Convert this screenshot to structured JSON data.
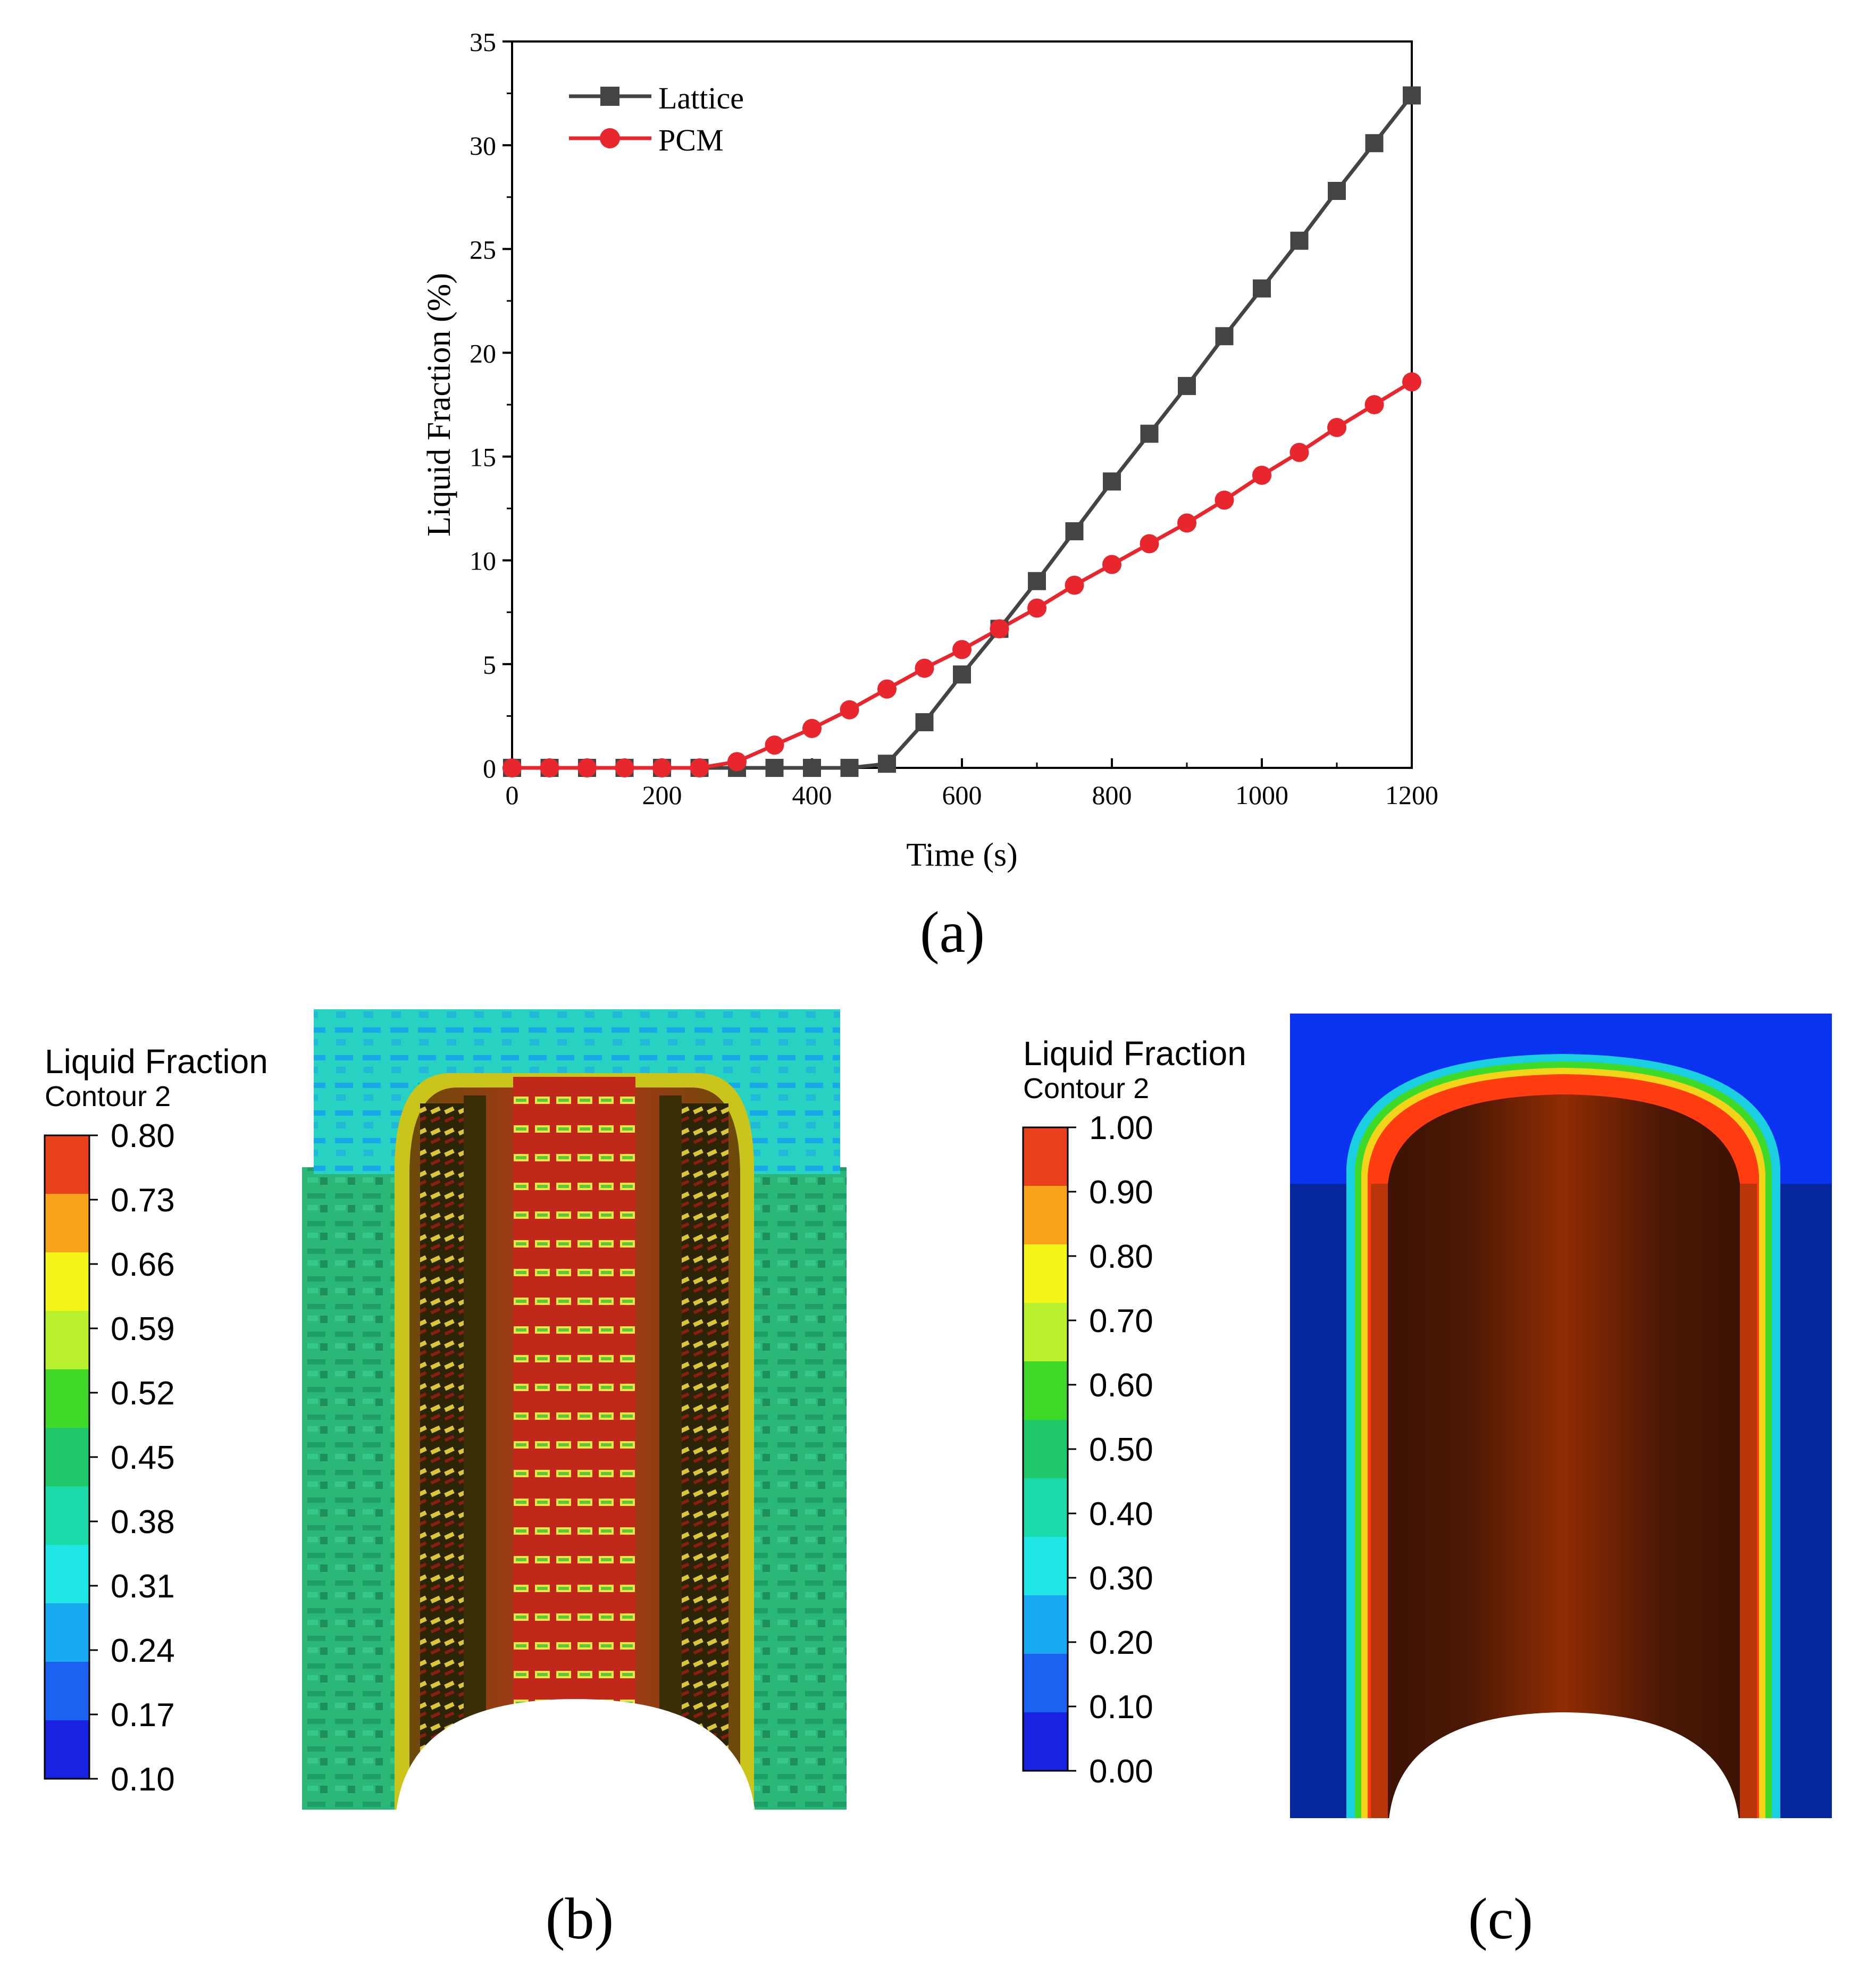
{
  "chart_data": [
    {
      "type": "line",
      "panel_label": "(a)",
      "title": "",
      "xlabel": "Time (s)",
      "ylabel": "Liquid Fraction (%)",
      "xlim": [
        0,
        1200
      ],
      "ylim": [
        0,
        35
      ],
      "xticks": [
        0,
        200,
        400,
        600,
        800,
        1000,
        1200
      ],
      "yticks": [
        0,
        5,
        10,
        15,
        20,
        25,
        30,
        35
      ],
      "grid": false,
      "legend_position": "top-left",
      "x": [
        0,
        50,
        100,
        150,
        200,
        250,
        300,
        350,
        400,
        450,
        500,
        550,
        600,
        650,
        700,
        750,
        800,
        850,
        900,
        950,
        1000,
        1050,
        1100,
        1150,
        1200
      ],
      "series": [
        {
          "name": "Lattice",
          "color": "#444444",
          "marker": "square",
          "values": [
            0,
            0,
            0,
            0,
            0,
            0,
            0,
            0,
            0,
            0,
            0.2,
            2.2,
            4.5,
            6.7,
            9.0,
            11.4,
            13.8,
            16.1,
            18.4,
            20.8,
            23.1,
            25.4,
            27.8,
            30.1,
            32.4
          ]
        },
        {
          "name": "PCM",
          "color": "#e8262d",
          "marker": "circle",
          "values": [
            0,
            0,
            0,
            0,
            0,
            0,
            0.3,
            1.1,
            1.9,
            2.8,
            3.8,
            4.8,
            5.7,
            6.7,
            7.7,
            8.8,
            9.8,
            10.8,
            11.8,
            12.9,
            14.1,
            15.2,
            16.4,
            17.5,
            18.6
          ]
        }
      ]
    },
    {
      "type": "heatmap",
      "panel_label": "(b)",
      "title": "Liquid Fraction",
      "subtitle": "Contour 2",
      "colorbar_ticks": [
        "0.80",
        "0.73",
        "0.66",
        "0.59",
        "0.52",
        "0.45",
        "0.38",
        "0.31",
        "0.24",
        "0.17",
        "0.10"
      ],
      "colorbar_colors": [
        "#e8411b",
        "#f7a21b",
        "#f4f61a",
        "#b9f12e",
        "#3fd928",
        "#21c86a",
        "#1bd9a9",
        "#22e6e6",
        "#1aaaf2",
        "#1c62f2",
        "#1a22e2"
      ]
    },
    {
      "type": "heatmap",
      "panel_label": "(c)",
      "title": "Liquid Fraction",
      "subtitle": "Contour 2",
      "colorbar_ticks": [
        "1.00",
        "0.90",
        "0.80",
        "0.70",
        "0.60",
        "0.50",
        "0.40",
        "0.30",
        "0.20",
        "0.10",
        "0.00"
      ],
      "colorbar_colors": [
        "#e8411b",
        "#f7a21b",
        "#f4f61a",
        "#b9f12e",
        "#3fd928",
        "#21c86a",
        "#1bd9a9",
        "#22e6e6",
        "#1aaaf2",
        "#1c62f2",
        "#1a22e2"
      ]
    }
  ],
  "colors": {
    "axis": "#000000",
    "lattice": "#444444",
    "pcm": "#e8262d",
    "melt_dark": "#4a1a05",
    "melt_core": "#8a2a03",
    "melt_edge": "#ff3d10",
    "solid_light": "#0a33f0",
    "solid_dark": "#06279c",
    "lattice_bg": "#2bbf7d",
    "lattice_top": "#26d4c7"
  }
}
